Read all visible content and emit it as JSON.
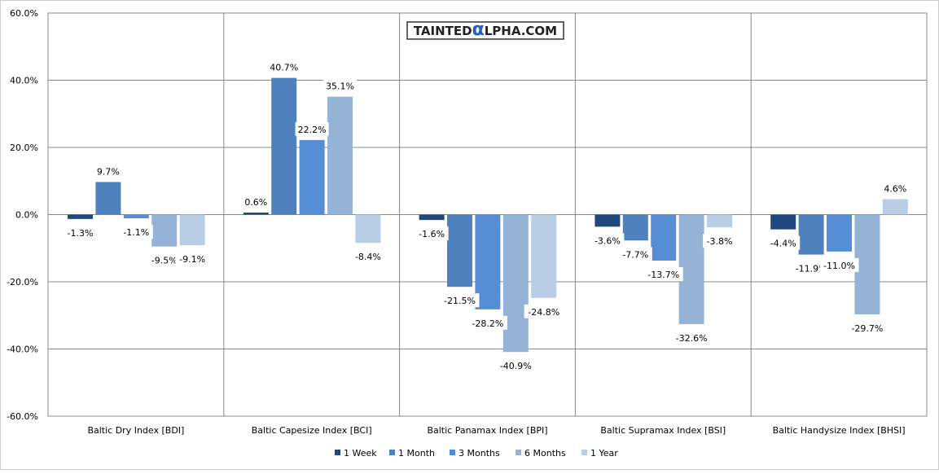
{
  "chart_data": {
    "type": "bar",
    "title": "",
    "xlabel": "",
    "ylabel": "",
    "ylim": [
      -60,
      60
    ],
    "yticks": [
      60,
      40,
      20,
      0,
      -20,
      -40,
      -60
    ],
    "ytick_labels": [
      "60.0%",
      "40.0%",
      "20.0%",
      "0.0%",
      "-20.0%",
      "-40.0%",
      "-60.0%"
    ],
    "grid": true,
    "legend_position": "bottom",
    "categories": [
      "Baltic Dry Index [BDI]",
      "Baltic Capesize Index [BCI]",
      "Baltic Panamax Index [BPI]",
      "Baltic Supramax Index [BSI]",
      "Baltic Handysize Index [BHSI]"
    ],
    "series": [
      {
        "name": "1 Week",
        "color": "#1f497d",
        "values": [
          -1.3,
          0.6,
          -1.6,
          -3.6,
          -4.4
        ],
        "labels": [
          "-1.3%",
          "0.6%",
          "-1.6%",
          "-3.6%",
          "-4.4%"
        ]
      },
      {
        "name": "1 Month",
        "color": "#4f81bd",
        "values": [
          9.7,
          40.7,
          -21.5,
          -7.7,
          -11.9
        ],
        "labels": [
          "9.7%",
          "40.7%",
          "-21.5%",
          "-7.7%",
          "-11.9%"
        ]
      },
      {
        "name": "3 Months",
        "color": "#558ed5",
        "values": [
          -1.1,
          22.2,
          -28.2,
          -13.7,
          -11.0
        ],
        "labels": [
          "-1.1%",
          "22.2%",
          "-28.2%",
          "-13.7%",
          "-11.0%"
        ]
      },
      {
        "name": "6 Months",
        "color": "#95b3d7",
        "values": [
          -9.5,
          35.1,
          -40.9,
          -32.6,
          -29.7
        ],
        "labels": [
          "-9.5%",
          "35.1%",
          "-40.9%",
          "-32.6%",
          "-29.7%"
        ]
      },
      {
        "name": "1 Year",
        "color": "#b9cde5",
        "values": [
          -9.1,
          -8.4,
          -24.8,
          -3.8,
          4.6
        ],
        "labels": [
          "-9.1%",
          "-8.4%",
          "-24.8%",
          "-3.8%",
          "4.6%"
        ]
      }
    ]
  },
  "watermark": "TAINTEDALPHA.COM"
}
